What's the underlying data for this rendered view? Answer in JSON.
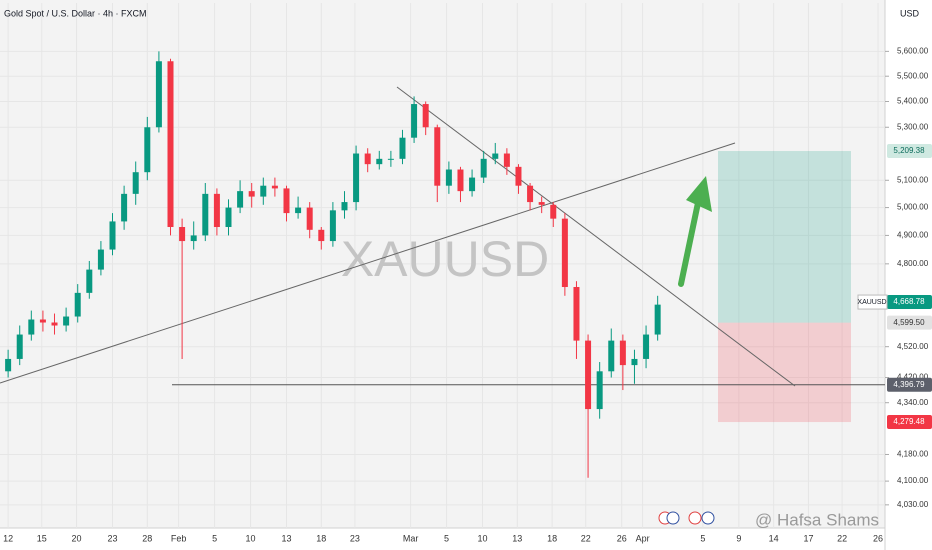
{
  "chart_data": {
    "type": "candlestick",
    "title": "Gold Spot / U.S. Dollar · 4h · FXCM",
    "watermark": "XAUUSD",
    "credit": "@ Hafsa Shams",
    "currency": "USD",
    "symbol": "XAUUSD",
    "log_scale": true,
    "grid": true,
    "up_color": "#089981",
    "down_color": "#f23645",
    "x": [
      0,
      1,
      2,
      3,
      4,
      5,
      6,
      7,
      8,
      9,
      10,
      11,
      12,
      13,
      14,
      15,
      16,
      17,
      18,
      19,
      20,
      21,
      22,
      23,
      24,
      25,
      26,
      27,
      28,
      29,
      30,
      31,
      32,
      33,
      34,
      35,
      36,
      37,
      38,
      39,
      40,
      41,
      42,
      43,
      44,
      45,
      46,
      47,
      48,
      49,
      50,
      51,
      52,
      53,
      54,
      55,
      56
    ],
    "open": [
      4440,
      4480,
      4560,
      4610,
      4600,
      4590,
      4620,
      4700,
      4780,
      4850,
      4950,
      5050,
      5130,
      5300,
      5560,
      4930,
      4880,
      4900,
      5050,
      4930,
      5000,
      5060,
      5040,
      5080,
      5070,
      4980,
      5000,
      4920,
      4880,
      4990,
      5020,
      5200,
      5160,
      5180,
      5180,
      5260,
      5390,
      5300,
      5080,
      5140,
      5060,
      5110,
      5180,
      5200,
      5150,
      5080,
      5020,
      5010,
      4960,
      4720,
      4540,
      4320,
      4440,
      4540,
      4460,
      4480,
      4560
    ],
    "high": [
      4510,
      4590,
      4640,
      4640,
      4630,
      4650,
      4730,
      4810,
      4880,
      4980,
      5080,
      5170,
      5340,
      5600,
      5570,
      4960,
      4950,
      5090,
      5070,
      5030,
      5100,
      5090,
      5110,
      5110,
      5080,
      5040,
      5020,
      4930,
      5020,
      5060,
      5230,
      5220,
      5210,
      5210,
      5290,
      5420,
      5400,
      5310,
      5170,
      5150,
      5140,
      5210,
      5240,
      5220,
      5160,
      5090,
      5040,
      5020,
      4980,
      4740,
      4560,
      4470,
      4580,
      4560,
      4510,
      4590,
      4690
    ],
    "low": [
      4420,
      4460,
      4540,
      4570,
      4560,
      4570,
      4600,
      4680,
      4760,
      4830,
      4920,
      5010,
      5100,
      5280,
      4900,
      4480,
      4850,
      4880,
      4900,
      4900,
      4980,
      5000,
      5010,
      5040,
      4950,
      4960,
      4890,
      4850,
      4860,
      4960,
      4990,
      5130,
      5140,
      5150,
      5160,
      5240,
      5270,
      5020,
      5050,
      5020,
      5040,
      5090,
      5160,
      5120,
      5050,
      4990,
      4980,
      4930,
      4690,
      4480,
      4110,
      4290,
      4420,
      4380,
      4400,
      4450,
      4540
    ],
    "close": [
      4480,
      4560,
      4610,
      4600,
      4590,
      4620,
      4700,
      4780,
      4850,
      4950,
      5050,
      5130,
      5300,
      5560,
      4930,
      4880,
      4900,
      5050,
      4930,
      5000,
      5060,
      5040,
      5080,
      5070,
      4980,
      5000,
      4920,
      4880,
      4990,
      5020,
      5200,
      5160,
      5180,
      5180,
      5260,
      5390,
      5300,
      5080,
      5140,
      5060,
      5110,
      5180,
      5200,
      5150,
      5080,
      5020,
      5010,
      4960,
      4720,
      4540,
      4320,
      4440,
      4540,
      4460,
      4480,
      4560,
      4660
    ],
    "xlim": [
      -0.7,
      75.6
    ],
    "xticks": [
      {
        "value": 0,
        "label": "12"
      },
      {
        "value": 2.9,
        "label": "15"
      },
      {
        "value": 5.9,
        "label": "20"
      },
      {
        "value": 9,
        "label": "23"
      },
      {
        "value": 12,
        "label": "28"
      },
      {
        "value": 14.7,
        "label": "Feb"
      },
      {
        "value": 17.8,
        "label": "5"
      },
      {
        "value": 20.9,
        "label": "10"
      },
      {
        "value": 24,
        "label": "13"
      },
      {
        "value": 27,
        "label": "18"
      },
      {
        "value": 29.9,
        "label": "23"
      },
      {
        "value": 34.7,
        "label": "Mar"
      },
      {
        "value": 37.8,
        "label": "5"
      },
      {
        "value": 40.9,
        "label": "10"
      },
      {
        "value": 43.9,
        "label": "13"
      },
      {
        "value": 46.9,
        "label": "18"
      },
      {
        "value": 49.8,
        "label": "22"
      },
      {
        "value": 52.9,
        "label": "26"
      },
      {
        "value": 54.7,
        "label": "Apr"
      },
      {
        "value": 59.9,
        "label": "5"
      },
      {
        "value": 63,
        "label": "9"
      },
      {
        "value": 66,
        "label": "14"
      },
      {
        "value": 69,
        "label": "17"
      },
      {
        "value": 71.9,
        "label": "22"
      },
      {
        "value": 75,
        "label": "26"
      }
    ],
    "ylim": [
      3960,
      5800
    ],
    "yticks": [
      {
        "value": 5600,
        "label": "5,600.00"
      },
      {
        "value": 5500,
        "label": "5,500.00"
      },
      {
        "value": 5400,
        "label": "5,400.00"
      },
      {
        "value": 5300,
        "label": "5,300.00"
      },
      {
        "value": 5100,
        "label": "5,100.00"
      },
      {
        "value": 5000,
        "label": "5,000.00"
      },
      {
        "value": 4900,
        "label": "4,900.00"
      },
      {
        "value": 4800,
        "label": "4,800.00"
      },
      {
        "value": 4520,
        "label": "4,520.00"
      },
      {
        "value": 4420,
        "label": "4,420.00"
      },
      {
        "value": 4340,
        "label": "4,340.00"
      },
      {
        "value": 4180,
        "label": "4,180.00"
      },
      {
        "value": 4100,
        "label": "4,100.00"
      },
      {
        "value": 4030,
        "label": "4,030.00"
      }
    ],
    "last_price": {
      "value": 4668.78,
      "label": "4,668.78"
    },
    "support": {
      "value": 4396.79,
      "label": "4,396.79"
    },
    "trade": {
      "target": {
        "value": 5209.38,
        "label": "5,209.38"
      },
      "entry": {
        "value": 4599.5,
        "label": "4,599.50"
      },
      "stop": {
        "value": 4279.48,
        "label": "4,279.48"
      }
    }
  }
}
